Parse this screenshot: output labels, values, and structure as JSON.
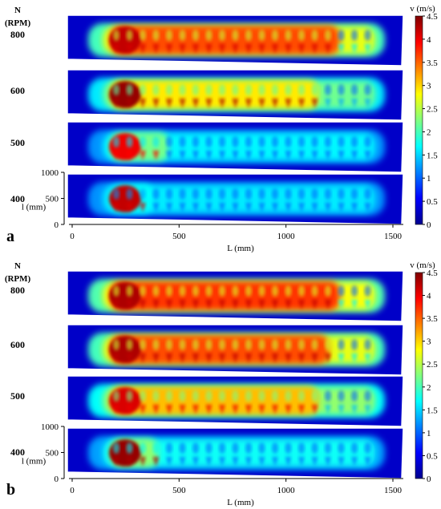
{
  "chart_data": [
    {
      "panel_label": "a",
      "type": "heatmap",
      "row_header": [
        "N",
        "(RPM)"
      ],
      "rows": [
        "800",
        "600",
        "500",
        "400"
      ],
      "xlabel": "L (mm)",
      "x_ticks": [
        "0",
        "500",
        "1000",
        "1500"
      ],
      "xlim": [
        0,
        1500
      ],
      "ylabel": "l (mm)",
      "y_ticks": [
        "0",
        "500",
        "1000"
      ],
      "ylim": [
        0,
        1000
      ],
      "colorbar_title": "v (m/s)",
      "colorbar_ticks": [
        "0",
        "0.5",
        "1",
        "1.5",
        "2",
        "2.5",
        "3",
        "3.5",
        "4",
        "4.5"
      ],
      "clim": [
        0,
        4.5
      ],
      "series": [
        {
          "rpm": 800,
          "peak_velocity": 4.2,
          "mean_core_velocity": 3.6,
          "high_velocity_extent_mm": [
            180,
            1250
          ]
        },
        {
          "rpm": 600,
          "peak_velocity": 4.4,
          "mean_core_velocity": 2.9,
          "high_velocity_extent_mm": [
            180,
            1150
          ]
        },
        {
          "rpm": 500,
          "peak_velocity": 4.0,
          "mean_core_velocity": 2.2,
          "high_velocity_extent_mm": [
            180,
            450
          ]
        },
        {
          "rpm": 400,
          "peak_velocity": 4.2,
          "mean_core_velocity": 1.7,
          "high_velocity_extent_mm": [
            180,
            380
          ]
        }
      ]
    },
    {
      "panel_label": "b",
      "type": "heatmap",
      "row_header": [
        "N",
        "(RPM)"
      ],
      "rows": [
        "800",
        "600",
        "500",
        "400"
      ],
      "xlabel": "L (mm)",
      "x_ticks": [
        "0",
        "500",
        "1000",
        "1500"
      ],
      "xlim": [
        0,
        1500
      ],
      "ylabel": "l (mm)",
      "y_ticks": [
        "0",
        "500",
        "1000"
      ],
      "ylim": [
        0,
        1000
      ],
      "colorbar_title": "v (m/s)",
      "colorbar_ticks": [
        "0",
        "0.5",
        "1",
        "1.5",
        "2",
        "2.5",
        "3",
        "3.5",
        "4",
        "4.5"
      ],
      "clim": [
        0,
        4.5
      ],
      "series": [
        {
          "rpm": 800,
          "peak_velocity": 4.3,
          "mean_core_velocity": 3.7,
          "high_velocity_extent_mm": [
            180,
            1250
          ]
        },
        {
          "rpm": 600,
          "peak_velocity": 4.3,
          "mean_core_velocity": 3.6,
          "high_velocity_extent_mm": [
            180,
            1200
          ]
        },
        {
          "rpm": 500,
          "peak_velocity": 4.1,
          "mean_core_velocity": 3.1,
          "high_velocity_extent_mm": [
            180,
            1150
          ]
        },
        {
          "rpm": 400,
          "peak_velocity": 4.4,
          "mean_core_velocity": 2.3,
          "high_velocity_extent_mm": [
            180,
            400
          ]
        }
      ]
    }
  ]
}
